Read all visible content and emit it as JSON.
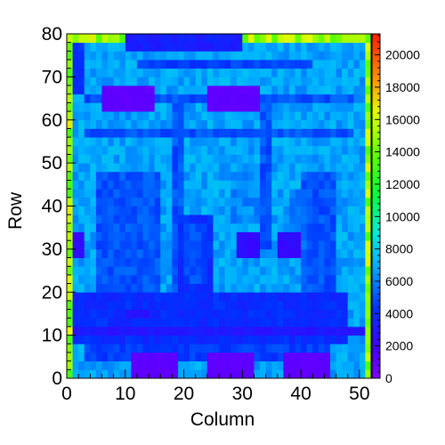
{
  "chart_data": {
    "type": "heatmap",
    "title": "",
    "xlabel": "Column",
    "ylabel": "Row",
    "xlim": [
      0,
      52
    ],
    "ylim": [
      0,
      80
    ],
    "x_ticks": [
      "0",
      "10",
      "20",
      "30",
      "40",
      "50"
    ],
    "y_ticks": [
      "0",
      "10",
      "20",
      "30",
      "40",
      "50",
      "60",
      "70",
      "80"
    ],
    "colorbar": {
      "range": [
        0,
        21300
      ],
      "ticks": [
        "0",
        "2000",
        "4000",
        "6000",
        "8000",
        "10000",
        "12000",
        "14000",
        "16000",
        "18000",
        "20000"
      ]
    },
    "grid": false,
    "cell_size": [
      1,
      2
    ],
    "base_value": 6800,
    "regions": [
      {
        "x": [
          0,
          1
        ],
        "y": [
          0,
          80
        ],
        "value": 15000
      },
      {
        "x": [
          51,
          52
        ],
        "y": [
          0,
          80
        ],
        "value": 15000
      },
      {
        "x": [
          0,
          52
        ],
        "y": [
          79,
          80
        ],
        "value": 15000
      },
      {
        "x": [
          0,
          52
        ],
        "y": [
          0,
          1
        ],
        "value": 15000
      },
      {
        "x": [
          1,
          3
        ],
        "y": [
          66,
          78
        ],
        "value": 4200
      },
      {
        "x": [
          10,
          30
        ],
        "y": [
          76,
          80
        ],
        "value": 3400
      },
      {
        "x": [
          12,
          42
        ],
        "y": [
          72,
          74
        ],
        "value": 4500
      },
      {
        "x": [
          3,
          49
        ],
        "y": [
          57,
          59
        ],
        "value": 5000
      },
      {
        "x": [
          3,
          49
        ],
        "y": [
          60,
          61
        ],
        "value": 6000
      },
      {
        "x": [
          3,
          49
        ],
        "y": [
          65,
          66
        ],
        "value": 5000
      },
      {
        "x": [
          18,
          20
        ],
        "y": [
          18,
          66
        ],
        "value": 5000
      },
      {
        "x": [
          33,
          35
        ],
        "y": [
          30,
          66
        ],
        "value": 5000
      },
      {
        "x": [
          5,
          16
        ],
        "y": [
          20,
          48
        ],
        "value": 5000
      },
      {
        "x": [
          40,
          46
        ],
        "y": [
          20,
          48
        ],
        "value": 5000
      },
      {
        "x": [
          19,
          25
        ],
        "y": [
          20,
          38
        ],
        "value": 4000
      },
      {
        "x": [
          20,
          24
        ],
        "y": [
          23,
          36
        ],
        "value": 4800
      },
      {
        "x": [
          28,
          33
        ],
        "y": [
          36,
          48
        ],
        "value": 6200
      },
      {
        "x": [
          38,
          41
        ],
        "y": [
          30,
          44
        ],
        "value": 5600
      },
      {
        "x": [
          1,
          48
        ],
        "y": [
          8,
          20
        ],
        "value": 4000
      },
      {
        "x": [
          3,
          45
        ],
        "y": [
          5,
          8
        ],
        "value": 4500
      },
      {
        "x": [
          1,
          51
        ],
        "y": [
          18,
          19
        ],
        "value": 3000
      },
      {
        "x": [
          1,
          51
        ],
        "y": [
          11,
          12
        ],
        "value": 3000
      },
      {
        "x": [
          1,
          51
        ],
        "y": [
          8,
          9
        ],
        "value": 3400
      },
      {
        "x": [
          10,
          14
        ],
        "y": [
          15,
          16
        ],
        "value": 2800
      },
      {
        "x": [
          1,
          3
        ],
        "y": [
          29,
          35
        ],
        "value": 2400
      },
      {
        "x": [
          29,
          33
        ],
        "y": [
          29,
          35
        ],
        "value": 2400
      },
      {
        "x": [
          36,
          40
        ],
        "y": [
          29,
          35
        ],
        "value": 2400
      },
      {
        "x": [
          6,
          15
        ],
        "y": [
          62,
          68
        ],
        "value": 1000
      },
      {
        "x": [
          24,
          33
        ],
        "y": [
          62,
          68
        ],
        "value": 1000
      },
      {
        "x": [
          11,
          19
        ],
        "y": [
          1,
          7
        ],
        "value": 1000
      },
      {
        "x": [
          24,
          32
        ],
        "y": [
          1,
          7
        ],
        "value": 1000
      },
      {
        "x": [
          37,
          45
        ],
        "y": [
          1,
          7
        ],
        "value": 1000
      }
    ]
  }
}
